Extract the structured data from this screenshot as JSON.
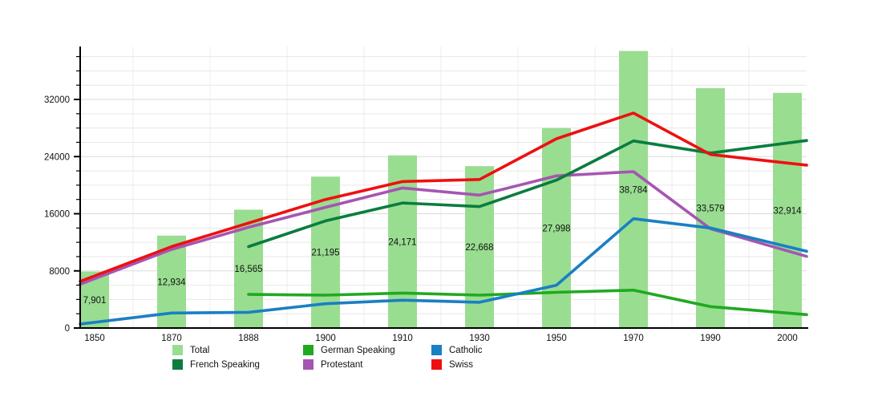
{
  "chart_data": {
    "type": "bar+line combo",
    "title": "",
    "categories": [
      "1850",
      "1870",
      "1888",
      "1900",
      "1910",
      "1930",
      "1950",
      "1970",
      "1990",
      "2000"
    ],
    "bar_series": {
      "name": "Total",
      "color": "#99dd91",
      "values": [
        7901,
        12934,
        16565,
        21195,
        24171,
        22668,
        27998,
        38784,
        33579,
        32914
      ],
      "value_labels": [
        "7,901",
        "12,934",
        "16,565",
        "21,195",
        "24,171",
        "22,668",
        "27,998",
        "38,784",
        "33,579",
        "32,914"
      ]
    },
    "line_series": [
      {
        "name": "German Speaking",
        "color": "#20a920",
        "values": [
          null,
          null,
          4700,
          4600,
          4900,
          4600,
          5000,
          5300,
          3000,
          2100
        ]
      },
      {
        "name": "Catholic",
        "color": "#1a7fc3",
        "values": [
          800,
          2100,
          2200,
          3400,
          3900,
          3600,
          6000,
          15300,
          14000,
          11400
        ]
      },
      {
        "name": "French Speaking",
        "color": "#0b7c3f",
        "values": [
          null,
          null,
          11400,
          15000,
          17500,
          17000,
          20700,
          26200,
          24500,
          25900
        ]
      },
      {
        "name": "Protestant",
        "color": "#a655b2",
        "values": [
          6900,
          11000,
          14100,
          16900,
          19600,
          18600,
          21300,
          21900,
          13900,
          10800
        ]
      },
      {
        "name": "Swiss",
        "color": "#ee1010",
        "values": [
          7300,
          11400,
          14700,
          18000,
          20500,
          20800,
          26500,
          30100,
          24300,
          23100
        ]
      }
    ],
    "draw_order": [
      3,
      0,
      1,
      2,
      4
    ],
    "y_axis": {
      "tick_labels": [
        "0",
        "8000",
        "16000",
        "24000",
        "32000"
      ],
      "major_step": 8000,
      "minor_step": 2000,
      "min": 0,
      "max": 39400
    },
    "x_axis": {
      "tick_labels": [
        "1850",
        "1870",
        "1888",
        "1900",
        "1910",
        "1930",
        "1950",
        "1970",
        "1990",
        "2000"
      ]
    },
    "grid": {
      "horizontal": true,
      "vertical": true
    },
    "legend_position": "bottom"
  },
  "legend": {
    "items": [
      {
        "label": "Total",
        "color": "#99dd91"
      },
      {
        "label": "German Speaking",
        "color": "#20a920"
      },
      {
        "label": "Catholic",
        "color": "#1a7fc3"
      },
      {
        "label": "French Speaking",
        "color": "#0b7c3f"
      },
      {
        "label": "Protestant",
        "color": "#a655b2"
      },
      {
        "label": "Swiss",
        "color": "#ee1010"
      }
    ]
  },
  "colors": {
    "axis": "#000000",
    "grid_minor": "#e7e7e7",
    "grid_major": "#dadada",
    "grid_vertical": "#ededed",
    "text": "#111111"
  }
}
